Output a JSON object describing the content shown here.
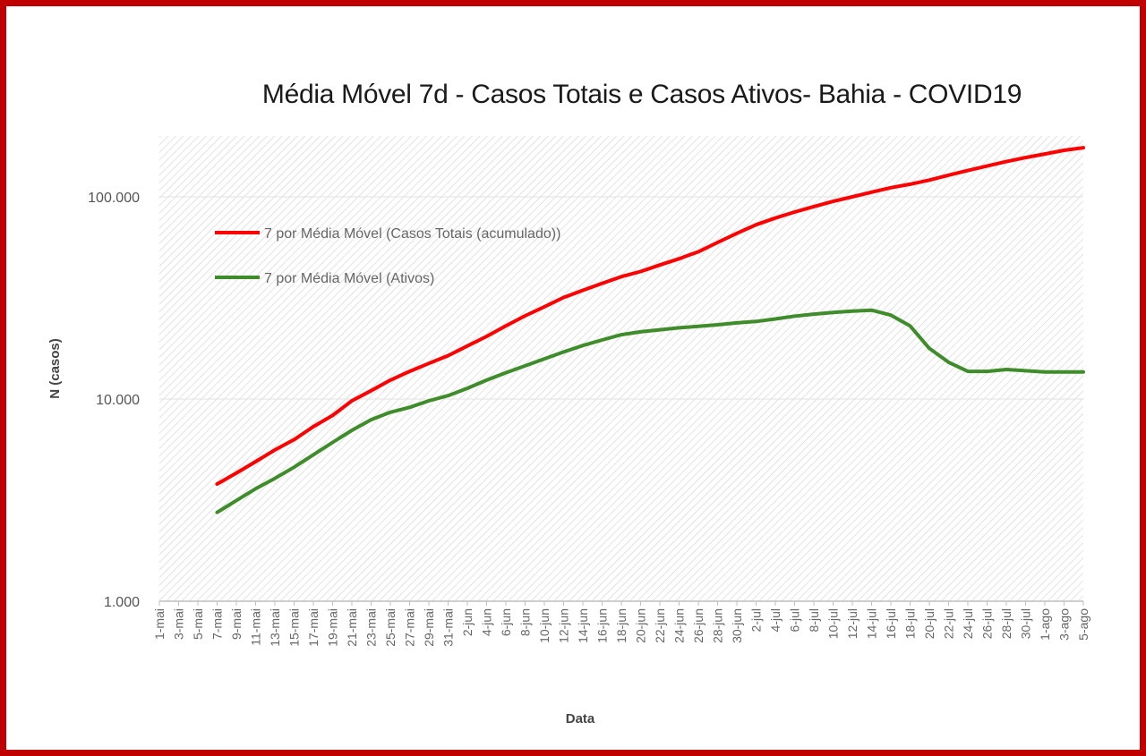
{
  "chart_data": {
    "type": "line",
    "title": "Média Móvel 7d - Casos Totais e Casos Ativos- Bahia - COVID19",
    "xlabel": "Data",
    "ylabel": "N (casos)",
    "yscale": "log",
    "ylim": [
      1000,
      200000
    ],
    "y_ticks": [
      "1.000",
      "10.000",
      "100.000"
    ],
    "y_tick_values": [
      1000,
      10000,
      100000
    ],
    "grid": true,
    "legend_position": "upper-left inside plot",
    "categories": [
      "1-mai",
      "3-mai",
      "5-mai",
      "7-mai",
      "9-mai",
      "11-mai",
      "13-mai",
      "15-mai",
      "17-mai",
      "19-mai",
      "21-mai",
      "23-mai",
      "25-mai",
      "27-mai",
      "29-mai",
      "31-mai",
      "2-jun",
      "4-jun",
      "6-jun",
      "8-jun",
      "10-jun",
      "12-jun",
      "14-jun",
      "16-jun",
      "18-jun",
      "20-jun",
      "22-jun",
      "24-jun",
      "26-jun",
      "28-jun",
      "30-jun",
      "2-jul",
      "4-jul",
      "6-jul",
      "8-jul",
      "10-jul",
      "12-jul",
      "14-jul",
      "16-jul",
      "18-jul",
      "20-jul",
      "22-jul",
      "24-jul",
      "26-jul",
      "28-jul",
      "30-jul",
      "1-ago",
      "3-ago",
      "5-ago"
    ],
    "series": [
      {
        "name": "7 por Média Móvel (Casos Totais (acumulado))",
        "color": "#ff0000",
        "values": [
          null,
          null,
          null,
          3800,
          4300,
          4900,
          5600,
          6300,
          7300,
          8300,
          9800,
          11000,
          12400,
          13700,
          15000,
          16400,
          18300,
          20400,
          23000,
          25800,
          28600,
          31800,
          34500,
          37300,
          40300,
          42700,
          46000,
          49400,
          53500,
          59500,
          66000,
          72800,
          78600,
          84100,
          89500,
          95000,
          100000,
          105500,
          111000,
          115500,
          121000,
          128000,
          135000,
          142000,
          149500,
          156500,
          163000,
          170000,
          175000
        ]
      },
      {
        "name": "7 por Média Móvel (Ativos)",
        "color": "#3e8c2a",
        "values": [
          null,
          null,
          null,
          2750,
          3150,
          3600,
          4050,
          4600,
          5300,
          6100,
          7000,
          7900,
          8600,
          9100,
          9800,
          10400,
          11300,
          12400,
          13500,
          14600,
          15800,
          17100,
          18400,
          19600,
          20800,
          21500,
          22000,
          22500,
          22900,
          23300,
          23800,
          24200,
          24900,
          25700,
          26300,
          26800,
          27200,
          27500,
          26000,
          23000,
          17800,
          15200,
          13700,
          13700,
          14000,
          13800,
          13600,
          13600,
          13600
        ]
      }
    ]
  }
}
